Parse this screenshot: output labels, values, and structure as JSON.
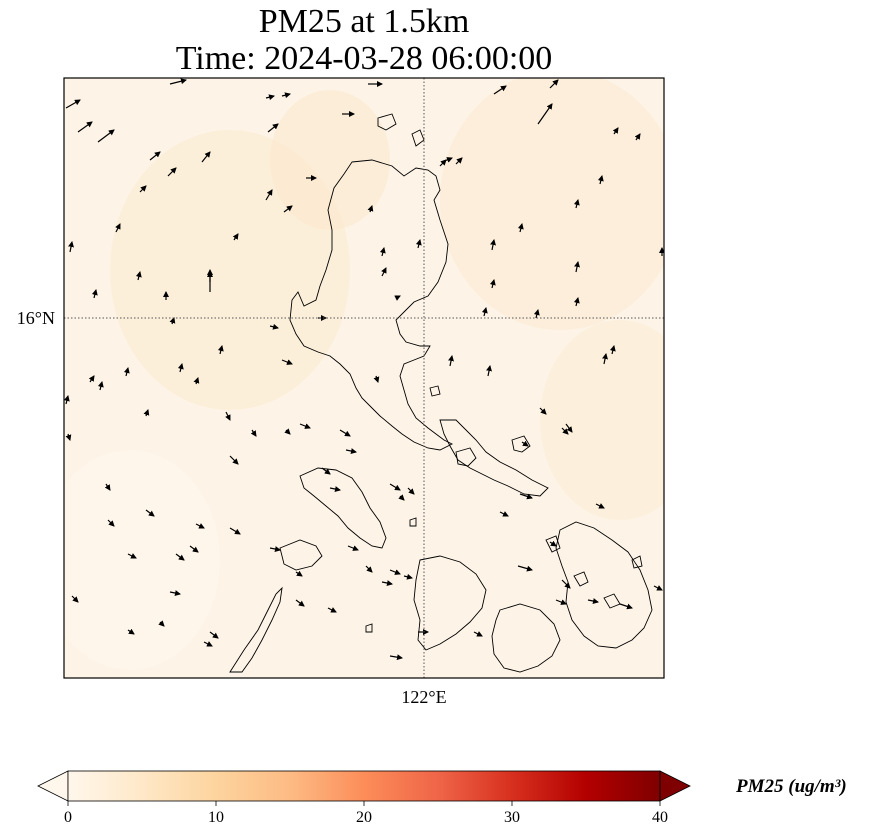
{
  "title": {
    "line1": "PM25 at 1.5km",
    "line2": "Time: 2024-03-28 06:00:00"
  },
  "map": {
    "gridlines": {
      "latitude_label": "16°N",
      "longitude_label": "122°E"
    },
    "field_colors": [
      "#fdf2e2",
      "#fcebd0",
      "#feefdb",
      "#fdf5ea"
    ]
  },
  "colorbar": {
    "label": "PM25 (ug/m³)",
    "min": 0,
    "max": 40,
    "ticks": [
      "0",
      "10",
      "20",
      "30",
      "40"
    ],
    "extend": "both",
    "colormap_stops": [
      "#fff7ec",
      "#fee8c8",
      "#fdd49e",
      "#fdbb84",
      "#fc8d59",
      "#ef6548",
      "#d7301f",
      "#b30000",
      "#7f0000"
    ]
  }
}
